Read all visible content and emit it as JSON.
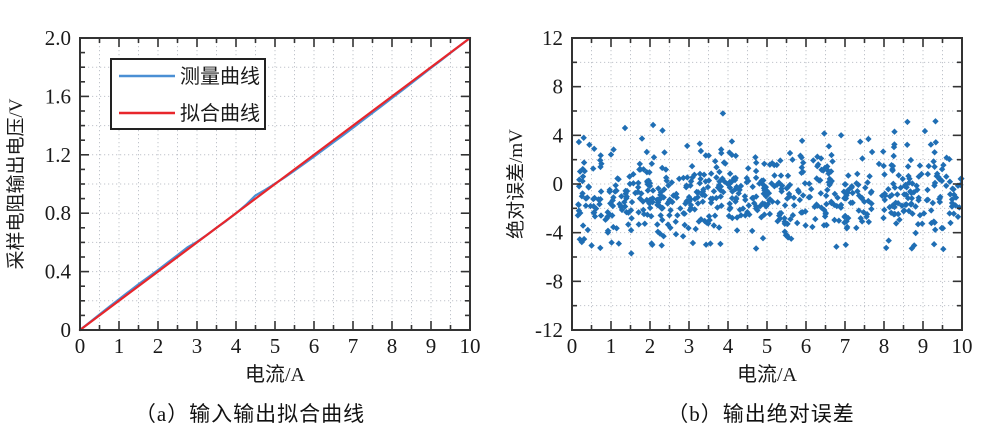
{
  "captions": {
    "a": "（a）输入输出拟合曲线",
    "b": "（b）输出绝对误差"
  },
  "chart_data": [
    {
      "id": "fit-curve-chart",
      "type": "line",
      "title": "",
      "xlabel": "电流/A",
      "ylabel": "采样电阻输出电压/V",
      "xlim": [
        0,
        10
      ],
      "ylim": [
        0,
        2
      ],
      "grid": true,
      "x_grid_step": 0.5,
      "y_grid_step": 0.2,
      "x_minor_step": 0.5,
      "y_minor_step": 0.1,
      "x_ticks": [
        {
          "v": 0,
          "label": "0"
        },
        {
          "v": 1,
          "label": "1"
        },
        {
          "v": 2,
          "label": "2"
        },
        {
          "v": 3,
          "label": "3"
        },
        {
          "v": 4,
          "label": "4"
        },
        {
          "v": 5,
          "label": "5"
        },
        {
          "v": 6,
          "label": "6"
        },
        {
          "v": 7,
          "label": "7"
        },
        {
          "v": 8,
          "label": "8"
        },
        {
          "v": 9,
          "label": "9"
        },
        {
          "v": 10,
          "label": "10"
        }
      ],
      "y_ticks": [
        {
          "v": 0,
          "label": "0"
        },
        {
          "v": 0.4,
          "label": "0.4"
        },
        {
          "v": 0.8,
          "label": "0.8"
        },
        {
          "v": 1.2,
          "label": "1.2"
        },
        {
          "v": 1.6,
          "label": "1.6"
        },
        {
          "v": 2,
          "label": "2.0"
        }
      ],
      "legend": {
        "position": "upper-left",
        "entries": [
          {
            "name": "测量曲线",
            "color": "#4a8fd4"
          },
          {
            "name": "拟合曲线",
            "color": "#e8262b"
          }
        ]
      },
      "series": [
        {
          "name": "测量曲线",
          "color": "#4a8fd4",
          "x": [
            0,
            0.25,
            0.5,
            0.75,
            1,
            1.25,
            1.5,
            1.75,
            2,
            2.25,
            2.5,
            2.75,
            3,
            3.25,
            3.5,
            3.75,
            4,
            4.25,
            4.5,
            4.75,
            5,
            5.25,
            5.5,
            5.75,
            6,
            6.25,
            6.5,
            6.75,
            7,
            7.25,
            7.5,
            7.75,
            8,
            8.25,
            8.5,
            8.75,
            9,
            9.25,
            9.5,
            9.75,
            10
          ],
          "y": [
            0,
            0.053,
            0.106,
            0.159,
            0.211,
            0.262,
            0.313,
            0.362,
            0.411,
            0.462,
            0.513,
            0.565,
            0.604,
            0.651,
            0.7,
            0.748,
            0.799,
            0.856,
            0.922,
            0.96,
            1.002,
            1.046,
            1.092,
            1.14,
            1.188,
            1.237,
            1.286,
            1.335,
            1.385,
            1.436,
            1.487,
            1.538,
            1.589,
            1.64,
            1.691,
            1.743,
            1.795,
            1.846,
            1.898,
            1.949,
            2
          ]
        },
        {
          "name": "拟合曲线",
          "color": "#e8262b",
          "x": [
            0,
            10
          ],
          "y": [
            0,
            2
          ]
        }
      ]
    },
    {
      "id": "error-scatter-chart",
      "type": "scatter",
      "title": "",
      "xlabel": "电流/A",
      "ylabel": "绝对误差/mV",
      "xlim": [
        0,
        10
      ],
      "ylim": [
        -12,
        12
      ],
      "grid": true,
      "x_grid_step": 0.5,
      "y_grid_step": 2,
      "x_minor_step": 0.5,
      "y_minor_step": 2,
      "x_ticks": [
        {
          "v": 0,
          "label": "0"
        },
        {
          "v": 1,
          "label": "1"
        },
        {
          "v": 2,
          "label": "2"
        },
        {
          "v": 3,
          "label": "3"
        },
        {
          "v": 4,
          "label": "4"
        },
        {
          "v": 5,
          "label": "5"
        },
        {
          "v": 6,
          "label": "6"
        },
        {
          "v": 7,
          "label": "7"
        },
        {
          "v": 8,
          "label": "8"
        },
        {
          "v": 9,
          "label": "9"
        },
        {
          "v": 10,
          "label": "10"
        }
      ],
      "y_ticks": [
        {
          "v": 12,
          "label": "12"
        },
        {
          "v": 8,
          "label": "8"
        },
        {
          "v": 4,
          "label": "4"
        },
        {
          "v": 0,
          "label": "0"
        },
        {
          "v": -4,
          "label": "-4"
        },
        {
          "v": -8,
          "label": "-8"
        },
        {
          "v": -12,
          "label": "-12"
        }
      ],
      "marker": {
        "shape": "diamond",
        "color": "#1f6eb4",
        "size": 3.2
      },
      "scatter_cloud": {
        "count": 640,
        "seed": 1337,
        "x_min": 0.15,
        "x_max": 10,
        "y_mean": -0.95,
        "y_std": 1.8,
        "y_clip": [
          -5.5,
          5.85
        ]
      },
      "outlier_points": [
        [
          3.87,
          5.8
        ],
        [
          8.6,
          5.1
        ],
        [
          9.32,
          5.15
        ],
        [
          2.08,
          4.85
        ],
        [
          1.36,
          4.6
        ],
        [
          2.32,
          4.4
        ],
        [
          9.05,
          4.35
        ],
        [
          8.27,
          4.3
        ],
        [
          6.47,
          4.15
        ],
        [
          6.9,
          4.0
        ],
        [
          0.3,
          3.8
        ],
        [
          5.9,
          3.55
        ],
        [
          7.6,
          3.7
        ],
        [
          4.1,
          3.5
        ],
        [
          1.52,
          -5.7
        ],
        [
          9.52,
          -5.35
        ],
        [
          4.72,
          -5.3
        ],
        [
          6.78,
          -5.15
        ],
        [
          7.02,
          -5.0
        ],
        [
          2.06,
          -5.0
        ],
        [
          1.2,
          -4.9
        ],
        [
          3.1,
          -4.85
        ],
        [
          5.62,
          -4.5
        ],
        [
          8.12,
          -4.65
        ],
        [
          2.3,
          -5.05
        ],
        [
          3.55,
          -4.9
        ]
      ]
    }
  ],
  "style": {
    "grid_color": "#c0c4cb",
    "axis_color": "#333333",
    "text_color": "#1a1a1a"
  }
}
